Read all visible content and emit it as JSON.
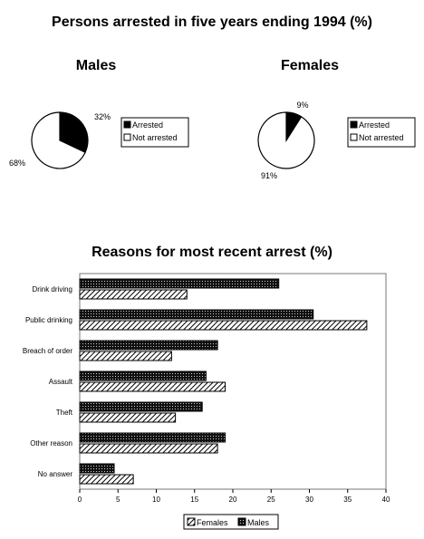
{
  "title": "Persons arrested in five years ending 1994 (%)",
  "colors": {
    "dark": "#000000",
    "light": "#ffffff",
    "frame": "#333333"
  },
  "chart_data": [
    {
      "type": "pie",
      "title": "Males",
      "labels": [
        "Arrested",
        "Not arrested"
      ],
      "values": [
        32,
        68
      ],
      "value_labels": [
        "32%",
        "68%"
      ],
      "legend": "right"
    },
    {
      "type": "pie",
      "title": "Females",
      "labels": [
        "Arrested",
        "Not arrested"
      ],
      "values": [
        9,
        91
      ],
      "value_labels": [
        "9%",
        "91%"
      ],
      "legend": "right"
    },
    {
      "type": "bar",
      "orientation": "horizontal",
      "title": "Reasons for most recent arrest (%)",
      "categories": [
        "Drink driving",
        "Public drinking",
        "Breach of order",
        "Assault",
        "Theft",
        "Other reason",
        "No answer"
      ],
      "series": [
        {
          "name": "Males",
          "pattern": "dotted-dark",
          "values": [
            26,
            30.5,
            18,
            16.5,
            16,
            19,
            4.5
          ]
        },
        {
          "name": "Females",
          "pattern": "hatched",
          "values": [
            14,
            37.5,
            12,
            19,
            12.5,
            18,
            7
          ]
        }
      ],
      "xlim": [
        0,
        40
      ],
      "xticks": [
        0,
        5,
        10,
        15,
        20,
        25,
        30,
        35,
        40
      ],
      "legend": "bottom",
      "legend_order": [
        "Females",
        "Males"
      ]
    }
  ]
}
